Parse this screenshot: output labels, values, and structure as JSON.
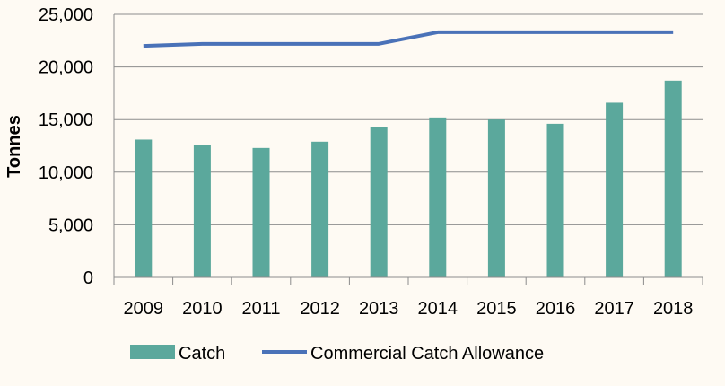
{
  "chart_data": {
    "type": "bar",
    "categories": [
      "2009",
      "2010",
      "2011",
      "2012",
      "2013",
      "2014",
      "2015",
      "2016",
      "2017",
      "2018"
    ],
    "series": [
      {
        "name": "Catch",
        "type": "bar",
        "color": "#5ba89c",
        "values": [
          13100,
          12600,
          12300,
          12900,
          14300,
          15200,
          15000,
          14600,
          16600,
          18700
        ]
      },
      {
        "name": "Commercial Catch Allowance",
        "type": "line",
        "color": "#4a72b8",
        "values": [
          22000,
          22200,
          22200,
          22200,
          22200,
          23300,
          23300,
          23300,
          23300,
          23300
        ]
      }
    ],
    "title": "",
    "xlabel": "",
    "ylabel": "Tonnes",
    "ylim": [
      0,
      25000
    ],
    "yticks": [
      "0",
      "5,000",
      "10,000",
      "15,000",
      "20,000",
      "25,000"
    ],
    "grid": true,
    "legend": "bottom"
  }
}
